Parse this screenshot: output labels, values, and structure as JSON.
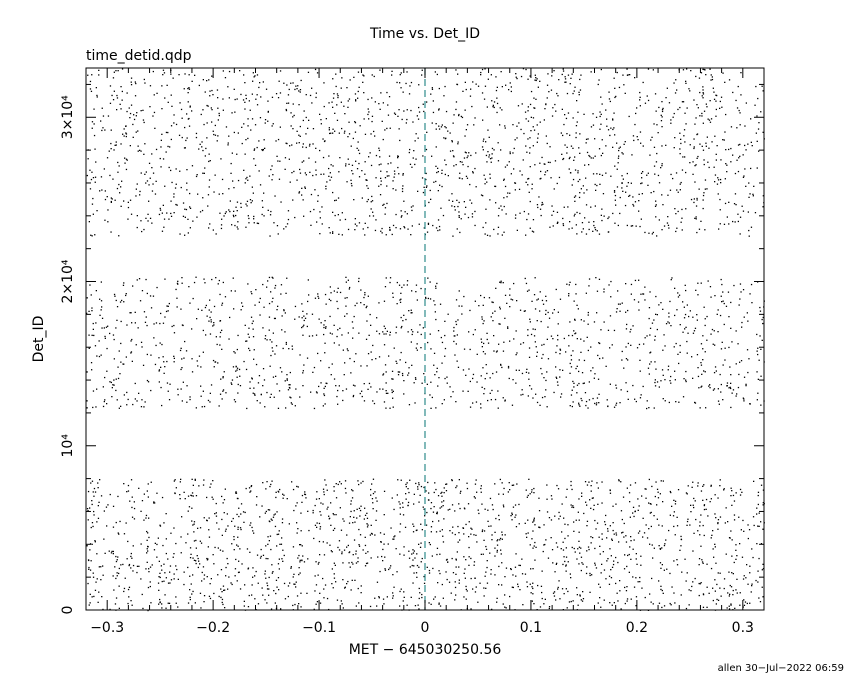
{
  "chart_data": {
    "type": "scatter",
    "title": "Time vs. Det_ID",
    "subtitle": "time_detid.qdp",
    "xlabel": "MET − 645030250.56",
    "ylabel": "Det_ID",
    "xlim": [
      -0.32,
      0.32
    ],
    "ylim": [
      0,
      33000
    ],
    "x_ticks": [
      {
        "value": -0.3,
        "label": "−0.3"
      },
      {
        "value": -0.2,
        "label": "−0.2"
      },
      {
        "value": -0.1,
        "label": "−0.1"
      },
      {
        "value": 0,
        "label": "0"
      },
      {
        "value": 0.1,
        "label": "0.1"
      },
      {
        "value": 0.2,
        "label": "0.2"
      },
      {
        "value": 0.3,
        "label": "0.3"
      }
    ],
    "y_ticks": [
      {
        "value": 0,
        "label": "0"
      },
      {
        "value": 10000,
        "label": "10⁴"
      },
      {
        "value": 20000,
        "label": "2×10⁴"
      },
      {
        "value": 30000,
        "label": "3×10⁴"
      }
    ],
    "reference_line": {
      "x": 0,
      "color": "#2e8b8b",
      "style": "dashed"
    },
    "point_color": "#000000",
    "grid": false,
    "detector_bands": [
      {
        "ymin": 0,
        "ymax": 8000
      },
      {
        "ymin": 12300,
        "ymax": 20300
      },
      {
        "ymin": 22800,
        "ymax": 33000
      }
    ],
    "points_per_band": [
      1800,
      1400,
      1900
    ],
    "footer": "allen 30−Jul−2022 06:59"
  }
}
